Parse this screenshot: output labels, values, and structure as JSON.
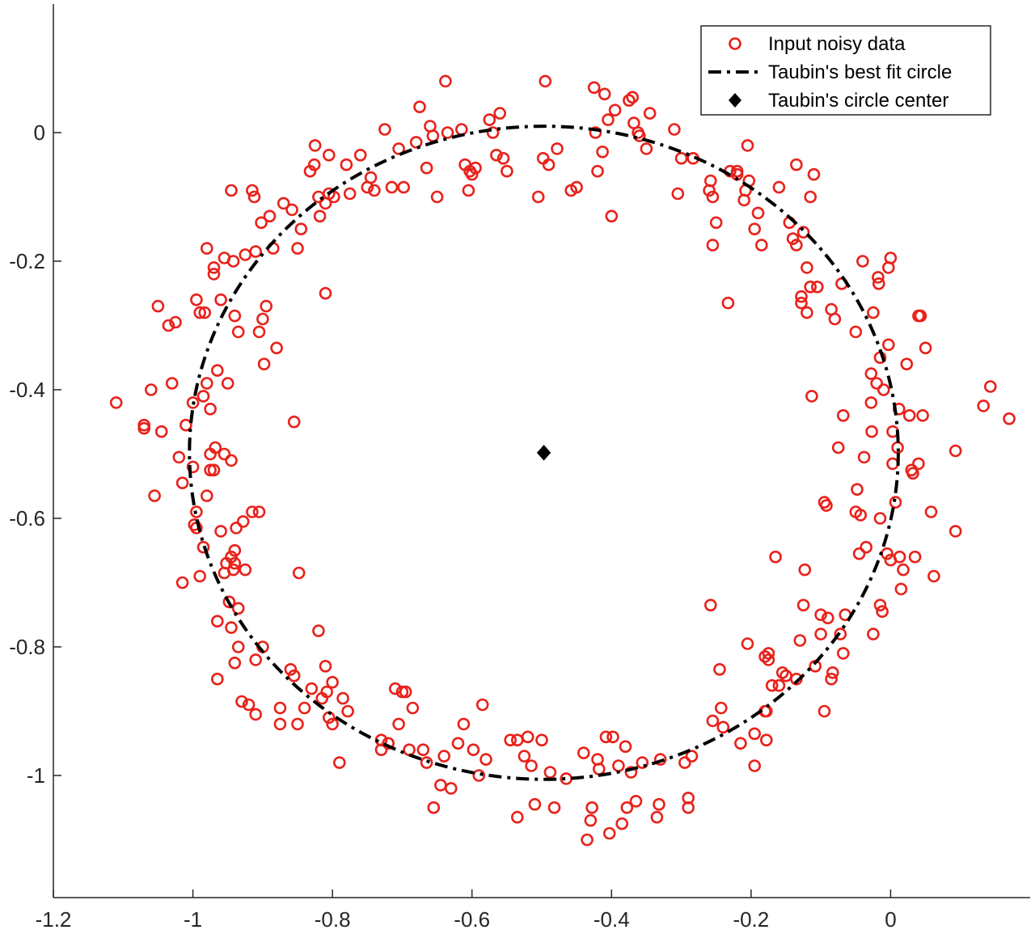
{
  "chart_data": {
    "type": "scatter",
    "title": "",
    "xlabel": "",
    "ylabel": "",
    "xlim": [
      -1.2,
      0.2
    ],
    "ylim": [
      -1.19,
      0.2
    ],
    "x_ticks": [
      -1.2,
      -1,
      -0.8,
      -0.6,
      -0.4,
      -0.2,
      0
    ],
    "x_tick_labels": [
      "-1.2",
      "-1",
      "-0.8",
      "-0.6",
      "-0.4",
      "-0.2",
      "0"
    ],
    "y_ticks": [
      0,
      -0.2,
      -0.4,
      -0.6,
      -0.8,
      -1
    ],
    "y_tick_labels": [
      "0",
      "-0.2",
      "-0.4",
      "-0.6",
      "-0.8",
      "-1"
    ],
    "grid": false,
    "legend_position": "top-right",
    "colors": {
      "data": "#e8221b",
      "fit": "#000000",
      "center": "#000000",
      "axis": "#262626"
    },
    "legend": [
      {
        "label": "Input noisy data",
        "marker": "circle-open"
      },
      {
        "label": "Taubin's best fit circle",
        "marker": "dash-dot-line"
      },
      {
        "label": "Taubin's circle center",
        "marker": "filled-diamond"
      }
    ],
    "fit_circle": {
      "center_x": -0.497,
      "center_y": -0.498,
      "radius": 0.508
    },
    "center_point": {
      "x": -0.497,
      "y": -0.498
    },
    "points": [
      [
        -1.11,
        -0.42
      ],
      [
        -1.07,
        -0.455
      ],
      [
        -1.07,
        -0.46
      ],
      [
        -1.06,
        -0.4
      ],
      [
        -1.055,
        -0.565
      ],
      [
        -1.045,
        -0.465
      ],
      [
        -1.05,
        -0.27
      ],
      [
        -1.035,
        -0.3
      ],
      [
        -1.03,
        -0.39
      ],
      [
        -1.025,
        -0.295
      ],
      [
        -1.02,
        -0.505
      ],
      [
        -1.015,
        -0.545
      ],
      [
        -1.015,
        -0.7
      ],
      [
        -1.01,
        -0.455
      ],
      [
        -1.0,
        -0.52
      ],
      [
        -1.0,
        -0.42
      ],
      [
        -0.995,
        -0.26
      ],
      [
        -0.998,
        -0.61
      ],
      [
        -0.995,
        -0.615
      ],
      [
        -0.995,
        -0.59
      ],
      [
        -0.99,
        -0.69
      ],
      [
        -0.99,
        -0.28
      ],
      [
        -0.985,
        -0.41
      ],
      [
        -0.985,
        -0.645
      ],
      [
        -0.983,
        -0.28
      ],
      [
        -0.98,
        -0.18
      ],
      [
        -0.98,
        -0.39
      ],
      [
        -0.98,
        -0.565
      ],
      [
        -0.975,
        -0.5
      ],
      [
        -0.975,
        -0.43
      ],
      [
        -0.975,
        -0.525
      ],
      [
        -0.97,
        -0.22
      ],
      [
        -0.97,
        -0.525
      ],
      [
        -0.97,
        -0.21
      ],
      [
        -0.968,
        -0.49
      ],
      [
        -0.965,
        -0.37
      ],
      [
        -0.965,
        -0.76
      ],
      [
        -0.965,
        -0.85
      ],
      [
        -0.96,
        -0.62
      ],
      [
        -0.96,
        -0.26
      ],
      [
        -0.955,
        -0.195
      ],
      [
        -0.955,
        -0.5
      ],
      [
        -0.955,
        -0.685
      ],
      [
        -0.952,
        -0.67
      ],
      [
        -0.95,
        -0.39
      ],
      [
        -0.948,
        -0.73
      ],
      [
        -0.945,
        -0.77
      ],
      [
        -0.945,
        -0.51
      ],
      [
        -0.945,
        -0.66
      ],
      [
        -0.945,
        -0.09
      ],
      [
        -0.942,
        -0.2
      ],
      [
        -0.942,
        -0.68
      ],
      [
        -0.94,
        -0.65
      ],
      [
        -0.94,
        -0.67
      ],
      [
        -0.94,
        -0.285
      ],
      [
        -0.94,
        -0.825
      ],
      [
        -0.938,
        -0.615
      ],
      [
        -0.935,
        -0.31
      ],
      [
        -0.935,
        -0.74
      ],
      [
        -0.935,
        -0.8
      ],
      [
        -0.93,
        -0.885
      ],
      [
        -0.928,
        -0.605
      ],
      [
        -0.925,
        -0.19
      ],
      [
        -0.925,
        -0.68
      ],
      [
        -0.92,
        -0.89
      ],
      [
        -0.915,
        -0.59
      ],
      [
        -0.915,
        -0.09
      ],
      [
        -0.912,
        -0.1
      ],
      [
        -0.91,
        -0.185
      ],
      [
        -0.91,
        -0.82
      ],
      [
        -0.91,
        -0.905
      ],
      [
        -0.905,
        -0.31
      ],
      [
        -0.905,
        -0.59
      ],
      [
        -0.902,
        -0.14
      ],
      [
        -0.9,
        -0.8
      ],
      [
        -0.9,
        -0.29
      ],
      [
        -0.898,
        -0.36
      ],
      [
        -0.895,
        -0.27
      ],
      [
        -0.89,
        -0.13
      ],
      [
        -0.885,
        -0.18
      ],
      [
        -0.88,
        -0.335
      ],
      [
        -0.875,
        -0.895
      ],
      [
        -0.875,
        -0.92
      ],
      [
        -0.87,
        -0.11
      ],
      [
        -0.86,
        -0.835
      ],
      [
        -0.858,
        -0.12
      ],
      [
        -0.855,
        -0.45
      ],
      [
        -0.855,
        -0.845
      ],
      [
        -0.85,
        -0.92
      ],
      [
        -0.85,
        -0.18
      ],
      [
        -0.848,
        -0.685
      ],
      [
        -0.845,
        -0.15
      ],
      [
        -0.84,
        -0.895
      ],
      [
        -0.832,
        -0.06
      ],
      [
        -0.83,
        -0.865
      ],
      [
        -0.826,
        -0.05
      ],
      [
        -0.825,
        -0.02
      ],
      [
        -0.82,
        -0.775
      ],
      [
        -0.82,
        -0.1
      ],
      [
        -0.818,
        -0.13
      ],
      [
        -0.815,
        -0.88
      ],
      [
        -0.81,
        -0.25
      ],
      [
        -0.81,
        -0.83
      ],
      [
        -0.81,
        -0.11
      ],
      [
        -0.808,
        -0.87
      ],
      [
        -0.805,
        -0.035
      ],
      [
        -0.805,
        -0.91
      ],
      [
        -0.805,
        -0.095
      ],
      [
        -0.8,
        -0.855
      ],
      [
        -0.8,
        -0.92
      ],
      [
        -0.798,
        -0.1
      ],
      [
        -0.79,
        -0.98
      ],
      [
        -0.785,
        -0.88
      ],
      [
        -0.78,
        -0.05
      ],
      [
        -0.778,
        -0.9
      ],
      [
        -0.775,
        -0.095
      ],
      [
        -0.76,
        -0.035
      ],
      [
        -0.75,
        -0.085
      ],
      [
        -0.745,
        -0.07
      ],
      [
        -0.74,
        -0.09
      ],
      [
        -0.73,
        -0.96
      ],
      [
        -0.73,
        -0.945
      ],
      [
        -0.725,
        0.005
      ],
      [
        -0.72,
        -0.95
      ],
      [
        -0.715,
        -0.085
      ],
      [
        -0.71,
        -0.865
      ],
      [
        -0.705,
        -0.92
      ],
      [
        -0.705,
        -0.025
      ],
      [
        -0.7,
        -0.87
      ],
      [
        -0.698,
        -0.085
      ],
      [
        -0.695,
        -0.87
      ],
      [
        -0.69,
        -0.96
      ],
      [
        -0.685,
        -0.895
      ],
      [
        -0.68,
        -0.015
      ],
      [
        -0.675,
        0.04
      ],
      [
        -0.67,
        -0.96
      ],
      [
        -0.665,
        -0.98
      ],
      [
        -0.665,
        -0.055
      ],
      [
        -0.66,
        0.01
      ],
      [
        -0.656,
        -0.005
      ],
      [
        -0.655,
        -1.05
      ],
      [
        -0.65,
        -0.1
      ],
      [
        -0.645,
        -1.015
      ],
      [
        -0.64,
        -0.97
      ],
      [
        -0.638,
        0.08
      ],
      [
        -0.635,
        0.0
      ],
      [
        -0.63,
        -1.02
      ],
      [
        -0.62,
        -0.95
      ],
      [
        -0.615,
        0.005
      ],
      [
        -0.612,
        -0.92
      ],
      [
        -0.61,
        -0.05
      ],
      [
        -0.605,
        -0.09
      ],
      [
        -0.603,
        -0.06
      ],
      [
        -0.6,
        -0.065
      ],
      [
        -0.598,
        -0.96
      ],
      [
        -0.595,
        -0.055
      ],
      [
        -0.59,
        -1.0
      ],
      [
        -0.585,
        -0.89
      ],
      [
        -0.58,
        -0.975
      ],
      [
        -0.575,
        0.02
      ],
      [
        -0.57,
        0.0
      ],
      [
        -0.565,
        -0.035
      ],
      [
        -0.56,
        0.03
      ],
      [
        -0.555,
        -0.04
      ],
      [
        -0.55,
        -0.06
      ],
      [
        -0.545,
        -0.945
      ],
      [
        -0.535,
        -1.065
      ],
      [
        -0.535,
        -0.945
      ],
      [
        -0.525,
        -0.97
      ],
      [
        -0.52,
        -0.94
      ],
      [
        -0.515,
        -0.985
      ],
      [
        -0.51,
        -1.045
      ],
      [
        -0.505,
        -0.1
      ],
      [
        -0.5,
        -0.945
      ],
      [
        -0.498,
        -0.04
      ],
      [
        -0.495,
        0.08
      ],
      [
        -0.49,
        -0.05
      ],
      [
        -0.488,
        -0.995
      ],
      [
        -0.482,
        -1.05
      ],
      [
        -0.478,
        -0.025
      ],
      [
        -0.465,
        -1.005
      ],
      [
        -0.458,
        -0.09
      ],
      [
        -0.45,
        -0.085
      ],
      [
        -0.44,
        -0.965
      ],
      [
        -0.435,
        -1.1
      ],
      [
        -0.43,
        -1.07
      ],
      [
        -0.428,
        -1.05
      ],
      [
        -0.425,
        0.07
      ],
      [
        -0.423,
        0.0
      ],
      [
        -0.42,
        -0.06
      ],
      [
        -0.42,
        -0.975
      ],
      [
        -0.418,
        -0.99
      ],
      [
        -0.413,
        -0.03
      ],
      [
        -0.41,
        0.06
      ],
      [
        -0.408,
        -0.94
      ],
      [
        -0.405,
        0.02
      ],
      [
        -0.403,
        -1.09
      ],
      [
        -0.4,
        -0.13
      ],
      [
        -0.398,
        -0.94
      ],
      [
        -0.395,
        0.035
      ],
      [
        -0.39,
        -0.985
      ],
      [
        -0.385,
        -1.075
      ],
      [
        -0.38,
        -0.955
      ],
      [
        -0.378,
        -1.05
      ],
      [
        -0.375,
        0.05
      ],
      [
        -0.372,
        -0.995
      ],
      [
        -0.37,
        0.055
      ],
      [
        -0.368,
        0.015
      ],
      [
        -0.365,
        -1.04
      ],
      [
        -0.362,
        0.0
      ],
      [
        -0.36,
        -0.005
      ],
      [
        -0.356,
        -0.98
      ],
      [
        -0.35,
        -0.025
      ],
      [
        -0.345,
        0.03
      ],
      [
        -0.335,
        -1.065
      ],
      [
        -0.332,
        -1.045
      ],
      [
        -0.33,
        -0.975
      ],
      [
        -0.31,
        0.005
      ],
      [
        -0.305,
        -0.095
      ],
      [
        -0.3,
        -0.04
      ],
      [
        -0.295,
        -0.98
      ],
      [
        -0.29,
        -1.035
      ],
      [
        -0.29,
        -1.05
      ],
      [
        -0.285,
        -0.97
      ],
      [
        -0.283,
        -0.04
      ],
      [
        -0.26,
        -0.09
      ],
      [
        -0.258,
        -0.075
      ],
      [
        -0.258,
        -0.735
      ],
      [
        -0.255,
        -0.915
      ],
      [
        -0.255,
        -0.175
      ],
      [
        -0.255,
        -0.1
      ],
      [
        -0.25,
        -0.14
      ],
      [
        -0.245,
        -0.835
      ],
      [
        -0.243,
        -0.895
      ],
      [
        -0.24,
        -0.925
      ],
      [
        -0.233,
        -0.265
      ],
      [
        -0.23,
        -0.06
      ],
      [
        -0.22,
        -0.06
      ],
      [
        -0.22,
        -0.065
      ],
      [
        -0.215,
        -0.95
      ],
      [
        -0.21,
        -0.105
      ],
      [
        -0.208,
        -0.09
      ],
      [
        -0.205,
        -0.795
      ],
      [
        -0.205,
        -0.02
      ],
      [
        -0.203,
        -0.075
      ],
      [
        -0.195,
        -0.935
      ],
      [
        -0.195,
        -0.15
      ],
      [
        -0.195,
        -0.985
      ],
      [
        -0.19,
        -0.125
      ],
      [
        -0.185,
        -0.175
      ],
      [
        -0.18,
        -0.815
      ],
      [
        -0.18,
        -0.9
      ],
      [
        -0.178,
        -0.9
      ],
      [
        -0.178,
        -0.945
      ],
      [
        -0.175,
        -0.82
      ],
      [
        -0.175,
        -0.81
      ],
      [
        -0.17,
        -0.86
      ],
      [
        -0.165,
        -0.66
      ],
      [
        -0.16,
        -0.085
      ],
      [
        -0.16,
        -0.86
      ],
      [
        -0.155,
        -0.84
      ],
      [
        -0.15,
        -0.845
      ],
      [
        -0.145,
        -0.14
      ],
      [
        -0.14,
        -0.165
      ],
      [
        -0.135,
        -0.85
      ],
      [
        -0.135,
        -0.05
      ],
      [
        -0.135,
        -0.175
      ],
      [
        -0.13,
        -0.79
      ],
      [
        -0.128,
        -0.255
      ],
      [
        -0.128,
        -0.265
      ],
      [
        -0.125,
        -0.735
      ],
      [
        -0.125,
        -0.155
      ],
      [
        -0.123,
        -0.68
      ],
      [
        -0.12,
        -0.28
      ],
      [
        -0.12,
        -0.21
      ],
      [
        -0.115,
        -0.1
      ],
      [
        -0.115,
        -0.24
      ],
      [
        -0.113,
        -0.41
      ],
      [
        -0.11,
        -0.065
      ],
      [
        -0.108,
        -0.83
      ],
      [
        -0.105,
        -0.24
      ],
      [
        -0.1,
        -0.75
      ],
      [
        -0.1,
        -0.78
      ],
      [
        -0.095,
        -0.575
      ],
      [
        -0.095,
        -0.9
      ],
      [
        -0.092,
        -0.58
      ],
      [
        -0.09,
        -0.755
      ],
      [
        -0.085,
        -0.275
      ],
      [
        -0.085,
        -0.85
      ],
      [
        -0.083,
        -0.84
      ],
      [
        -0.08,
        -0.29
      ],
      [
        -0.075,
        -0.49
      ],
      [
        -0.072,
        -0.78
      ],
      [
        -0.07,
        -0.235
      ],
      [
        -0.068,
        -0.81
      ],
      [
        -0.068,
        -0.44
      ],
      [
        -0.065,
        -0.75
      ],
      [
        -0.05,
        -0.31
      ],
      [
        -0.05,
        -0.59
      ],
      [
        -0.048,
        -0.555
      ],
      [
        -0.045,
        -0.655
      ],
      [
        -0.043,
        -0.595
      ],
      [
        -0.04,
        -0.2
      ],
      [
        -0.038,
        -0.505
      ],
      [
        -0.035,
        -0.645
      ],
      [
        -0.028,
        -0.375
      ],
      [
        -0.028,
        -0.42
      ],
      [
        -0.027,
        -0.465
      ],
      [
        -0.025,
        -0.78
      ],
      [
        -0.025,
        -0.28
      ],
      [
        -0.02,
        -0.39
      ],
      [
        -0.018,
        -0.225
      ],
      [
        -0.017,
        -0.235
      ],
      [
        -0.015,
        -0.6
      ],
      [
        -0.015,
        -0.735
      ],
      [
        -0.015,
        -0.35
      ],
      [
        -0.012,
        -0.745
      ],
      [
        -0.01,
        -0.4
      ],
      [
        -0.005,
        -0.655
      ],
      [
        -0.003,
        -0.33
      ],
      [
        -0.003,
        -0.21
      ],
      [
        0.0,
        -0.665
      ],
      [
        0.0,
        -0.195
      ],
      [
        0.003,
        -0.465
      ],
      [
        0.003,
        -0.515
      ],
      [
        0.007,
        -0.575
      ],
      [
        0.01,
        -0.49
      ],
      [
        0.012,
        -0.43
      ],
      [
        0.013,
        -0.66
      ],
      [
        0.015,
        -0.71
      ],
      [
        0.018,
        -0.68
      ],
      [
        0.023,
        -0.36
      ],
      [
        0.027,
        -0.44
      ],
      [
        0.03,
        -0.525
      ],
      [
        0.032,
        -0.53
      ],
      [
        0.035,
        -0.66
      ],
      [
        0.04,
        -0.285
      ],
      [
        0.04,
        -0.515
      ],
      [
        0.043,
        -0.285
      ],
      [
        0.046,
        -0.44
      ],
      [
        0.05,
        -0.335
      ],
      [
        0.058,
        -0.59
      ],
      [
        0.062,
        -0.69
      ],
      [
        0.093,
        -0.495
      ],
      [
        0.093,
        -0.62
      ],
      [
        0.133,
        -0.425
      ],
      [
        0.143,
        -0.395
      ],
      [
        0.17,
        -0.445
      ]
    ]
  }
}
